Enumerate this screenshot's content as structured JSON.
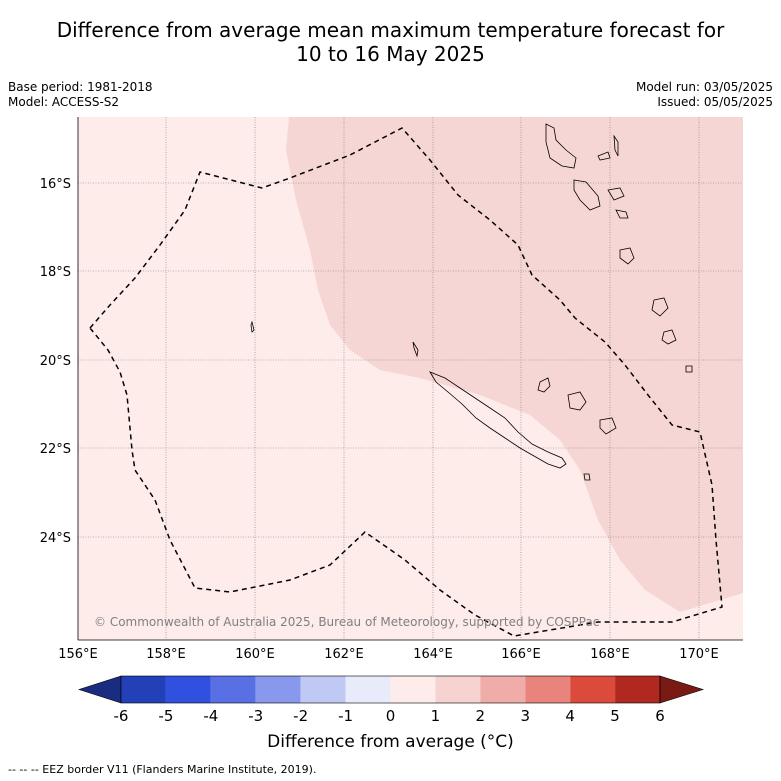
{
  "title_line1": "Difference from average mean maximum temperature forecast for",
  "title_line2": "10 to 16 May 2025",
  "base_period": "Base period: 1981-2018",
  "model": "Model: ACCESS-S2",
  "model_run": "Model run: 03/05/2025",
  "issued": "Issued: 05/05/2025",
  "copyright": "© Commonwealth of Australia 2025, Bureau of Meteorology, supported by COSPPac",
  "lon_ticks": [
    "156°E",
    "158°E",
    "160°E",
    "162°E",
    "164°E",
    "166°E",
    "168°E",
    "170°E"
  ],
  "lat_ticks": [
    "16°S",
    "18°S",
    "20°S",
    "22°S",
    "24°S"
  ],
  "colorbar": {
    "labels": [
      "-6",
      "-5",
      "-4",
      "-3",
      "-2",
      "-1",
      "0",
      "1",
      "2",
      "3",
      "4",
      "5",
      "6"
    ],
    "colors": [
      "#1a2c80",
      "#2340b8",
      "#3050e0",
      "#5870e4",
      "#8898ec",
      "#c0c8f4",
      "#e8ecfa",
      "#fdecea",
      "#f6d2d0",
      "#f0aca8",
      "#e8847c",
      "#dc4a3c",
      "#b02820",
      "#7a1a14"
    ],
    "title": "Difference from average (°C)"
  },
  "footer": "-- -- -- EEZ border V11 (Flanders Marine Institute, 2019).",
  "map_colors": {
    "background_anomaly": "#fdecea",
    "warm_anomaly": "#f6d6d4"
  }
}
